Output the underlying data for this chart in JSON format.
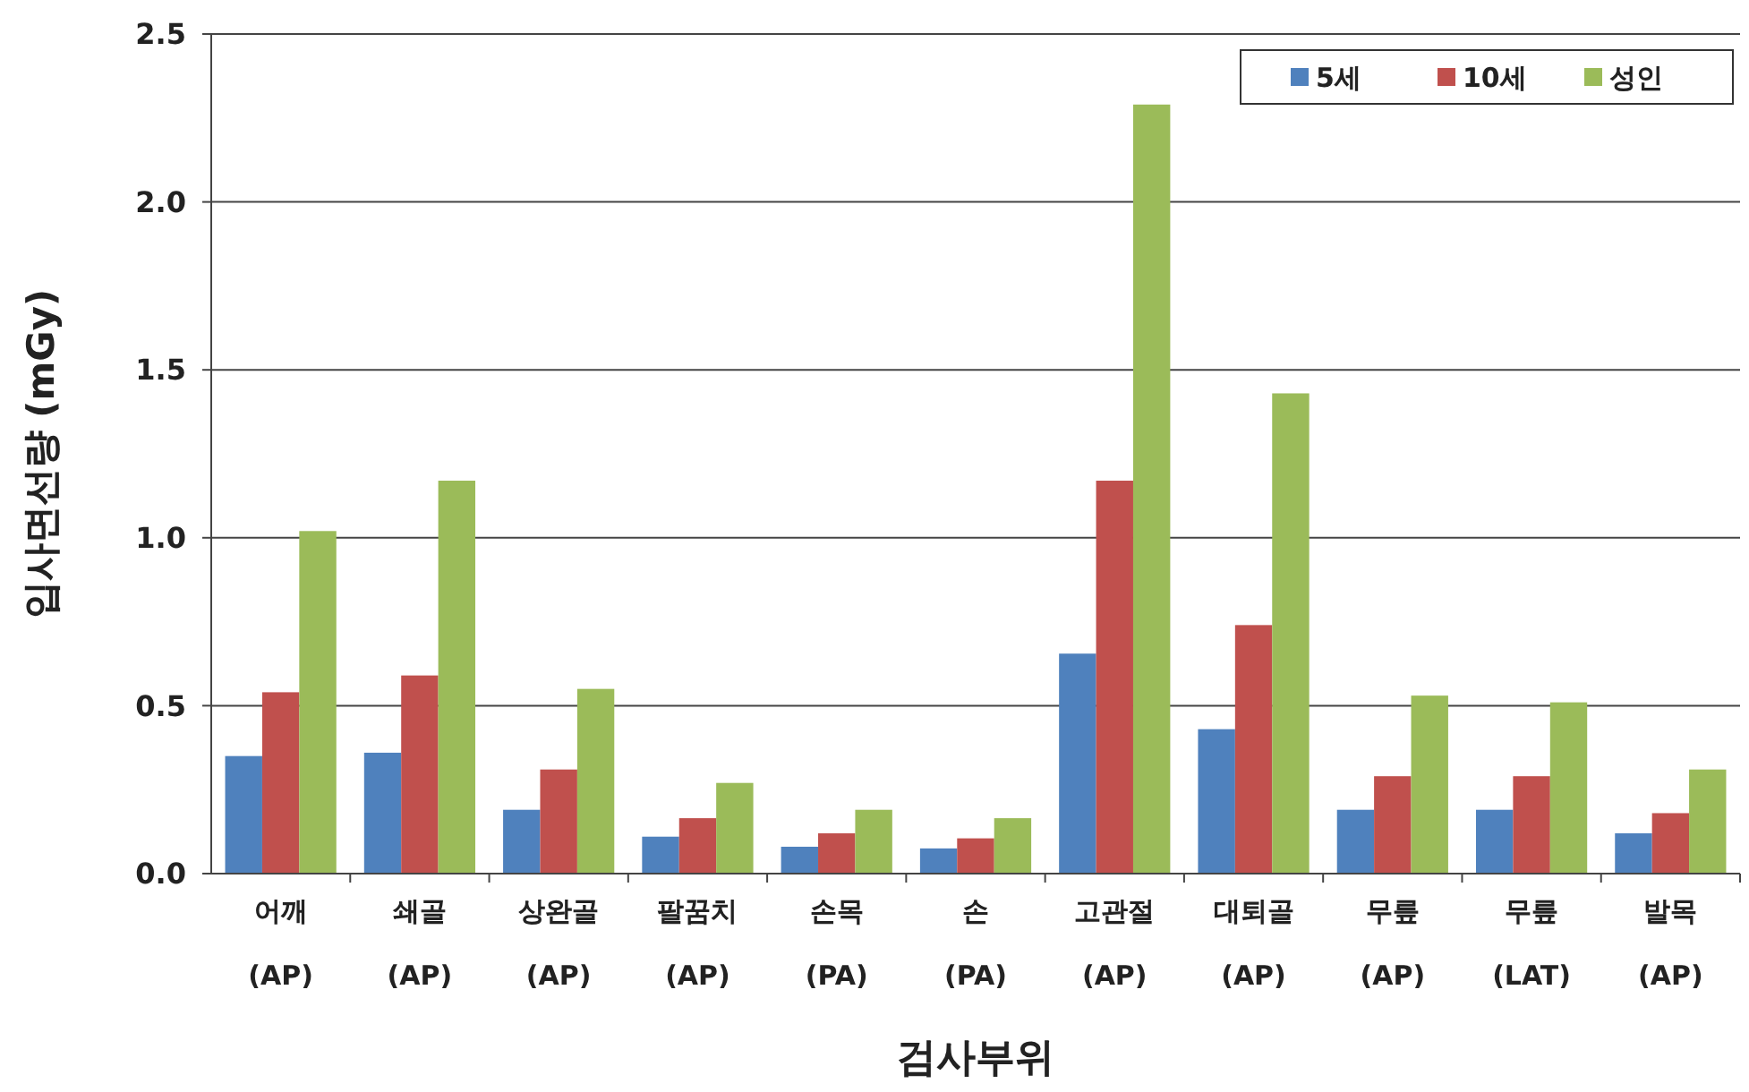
{
  "chart_data": {
    "type": "bar",
    "xlabel": "검사부위",
    "ylabel": "입사면선량 (mGy)",
    "categories": [
      "어깨\n(AP)",
      "쇄골\n(AP)",
      "상완골\n(AP)",
      "팔꿈치\n(AP)",
      "손목\n(PA)",
      "손\n(PA)",
      "고관절\n(AP)",
      "대퇴골\n(AP)",
      "무릎\n(AP)",
      "무릎\n(LAT)",
      "발목\n(AP)"
    ],
    "series": [
      {
        "name": "5세",
        "color": "#4f81bd",
        "values": [
          0.35,
          0.36,
          0.19,
          0.11,
          0.08,
          0.075,
          0.655,
          0.43,
          0.19,
          0.19,
          0.12
        ]
      },
      {
        "name": "10세",
        "color": "#c0504d",
        "values": [
          0.54,
          0.59,
          0.31,
          0.165,
          0.12,
          0.105,
          1.17,
          0.74,
          0.29,
          0.29,
          0.18
        ]
      },
      {
        "name": "성인",
        "color": "#9bbb59",
        "values": [
          1.02,
          1.17,
          0.55,
          0.27,
          0.19,
          0.165,
          2.29,
          1.43,
          0.53,
          0.51,
          0.31
        ]
      }
    ],
    "ylim": [
      0,
      2.5
    ],
    "yticks": [
      {
        "value": 0,
        "label": "0.0"
      },
      {
        "value": 0.5,
        "label": "0.5"
      },
      {
        "value": 1,
        "label": "1.0"
      },
      {
        "value": 1.5,
        "label": "1.5"
      },
      {
        "value": 2,
        "label": "2.0"
      },
      {
        "value": 2.5,
        "label": "2.5"
      }
    ],
    "grid": "y",
    "legend": "top right"
  }
}
